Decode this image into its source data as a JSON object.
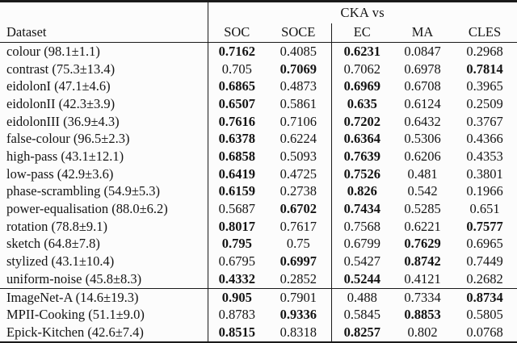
{
  "colors": {
    "background": "#fcfcfc",
    "text": "#141414",
    "rule": "#1a1a1a"
  },
  "table": {
    "span_header": "CKA vs",
    "columns": [
      "Dataset",
      "SOC",
      "SOCE",
      "EC",
      "MA",
      "CLES"
    ],
    "body_rows": [
      {
        "dataset": "colour (98.1±1.1)",
        "values": [
          {
            "v": "0.7162",
            "b": true
          },
          {
            "v": "0.4085",
            "b": false
          },
          {
            "v": "0.6231",
            "b": true
          },
          {
            "v": "0.0847",
            "b": false
          },
          {
            "v": "0.2968",
            "b": false
          }
        ]
      },
      {
        "dataset": "contrast (75.3±13.4)",
        "values": [
          {
            "v": "0.705",
            "b": false
          },
          {
            "v": "0.7069",
            "b": true
          },
          {
            "v": "0.7062",
            "b": false
          },
          {
            "v": "0.6978",
            "b": false
          },
          {
            "v": "0.7814",
            "b": true
          }
        ]
      },
      {
        "dataset": "eidolonI (47.1±4.6)",
        "values": [
          {
            "v": "0.6865",
            "b": true
          },
          {
            "v": "0.4873",
            "b": false
          },
          {
            "v": "0.6969",
            "b": true
          },
          {
            "v": "0.6708",
            "b": false
          },
          {
            "v": "0.3965",
            "b": false
          }
        ]
      },
      {
        "dataset": "eidolonII (42.3±3.9)",
        "values": [
          {
            "v": "0.6507",
            "b": true
          },
          {
            "v": "0.5861",
            "b": false
          },
          {
            "v": "0.635",
            "b": true
          },
          {
            "v": "0.6124",
            "b": false
          },
          {
            "v": "0.2509",
            "b": false
          }
        ]
      },
      {
        "dataset": "eidolonIII (36.9±4.3)",
        "values": [
          {
            "v": "0.7616",
            "b": true
          },
          {
            "v": "0.7106",
            "b": false
          },
          {
            "v": "0.7202",
            "b": true
          },
          {
            "v": "0.6432",
            "b": false
          },
          {
            "v": "0.3767",
            "b": false
          }
        ]
      },
      {
        "dataset": "false-colour (96.5±2.3)",
        "values": [
          {
            "v": "0.6378",
            "b": true
          },
          {
            "v": "0.6224",
            "b": false
          },
          {
            "v": "0.6364",
            "b": true
          },
          {
            "v": "0.5306",
            "b": false
          },
          {
            "v": "0.4366",
            "b": false
          }
        ]
      },
      {
        "dataset": "high-pass (43.1±12.1)",
        "values": [
          {
            "v": "0.6858",
            "b": true
          },
          {
            "v": "0.5093",
            "b": false
          },
          {
            "v": "0.7639",
            "b": true
          },
          {
            "v": "0.6206",
            "b": false
          },
          {
            "v": "0.4353",
            "b": false
          }
        ]
      },
      {
        "dataset": "low-pass (42.9±3.6)",
        "values": [
          {
            "v": "0.6419",
            "b": true
          },
          {
            "v": "0.4725",
            "b": false
          },
          {
            "v": "0.7526",
            "b": true
          },
          {
            "v": "0.481",
            "b": false
          },
          {
            "v": "0.3801",
            "b": false
          }
        ]
      },
      {
        "dataset": "phase-scrambling (54.9±5.3)",
        "values": [
          {
            "v": "0.6159",
            "b": true
          },
          {
            "v": "0.2738",
            "b": false
          },
          {
            "v": "0.826",
            "b": true
          },
          {
            "v": "0.542",
            "b": false
          },
          {
            "v": "0.1966",
            "b": false
          }
        ]
      },
      {
        "dataset": "power-equalisation (88.0±6.2)",
        "values": [
          {
            "v": "0.5687",
            "b": false
          },
          {
            "v": "0.6702",
            "b": true
          },
          {
            "v": "0.7434",
            "b": true
          },
          {
            "v": "0.5285",
            "b": false
          },
          {
            "v": "0.651",
            "b": false
          }
        ]
      },
      {
        "dataset": "rotation (78.8±9.1)",
        "values": [
          {
            "v": "0.8017",
            "b": true
          },
          {
            "v": "0.7617",
            "b": false
          },
          {
            "v": "0.7568",
            "b": false
          },
          {
            "v": "0.6221",
            "b": false
          },
          {
            "v": "0.7577",
            "b": true
          }
        ]
      },
      {
        "dataset": "sketch (64.8±7.8)",
        "values": [
          {
            "v": "0.795",
            "b": true
          },
          {
            "v": "0.75",
            "b": false
          },
          {
            "v": "0.6799",
            "b": false
          },
          {
            "v": "0.7629",
            "b": true
          },
          {
            "v": "0.6965",
            "b": false
          }
        ]
      },
      {
        "dataset": "stylized (43.1±10.4)",
        "values": [
          {
            "v": "0.6795",
            "b": false
          },
          {
            "v": "0.6997",
            "b": true
          },
          {
            "v": "0.5427",
            "b": false
          },
          {
            "v": "0.8742",
            "b": true
          },
          {
            "v": "0.7449",
            "b": false
          }
        ]
      },
      {
        "dataset": "uniform-noise (45.8±8.3)",
        "values": [
          {
            "v": "0.4332",
            "b": true
          },
          {
            "v": "0.2852",
            "b": false
          },
          {
            "v": "0.5244",
            "b": true
          },
          {
            "v": "0.4121",
            "b": false
          },
          {
            "v": "0.2682",
            "b": false
          }
        ]
      }
    ],
    "ood_rows": [
      {
        "dataset": "ImageNet-A (14.6±19.3)",
        "values": [
          {
            "v": "0.905",
            "b": true
          },
          {
            "v": "0.7901",
            "b": false
          },
          {
            "v": "0.488",
            "b": false
          },
          {
            "v": "0.7334",
            "b": false
          },
          {
            "v": "0.8734",
            "b": true
          }
        ]
      },
      {
        "dataset": "MPII-Cooking (51.1±9.0)",
        "values": [
          {
            "v": "0.8783",
            "b": false
          },
          {
            "v": "0.9336",
            "b": true
          },
          {
            "v": "0.5845",
            "b": false
          },
          {
            "v": "0.8853",
            "b": true
          },
          {
            "v": "0.5805",
            "b": false
          }
        ]
      },
      {
        "dataset": "Epick-Kitchen (42.6±7.4)",
        "values": [
          {
            "v": "0.8515",
            "b": true
          },
          {
            "v": "0.8318",
            "b": false
          },
          {
            "v": "0.8257",
            "b": true
          },
          {
            "v": "0.802",
            "b": false
          },
          {
            "v": "0.0768",
            "b": false
          }
        ]
      }
    ]
  }
}
